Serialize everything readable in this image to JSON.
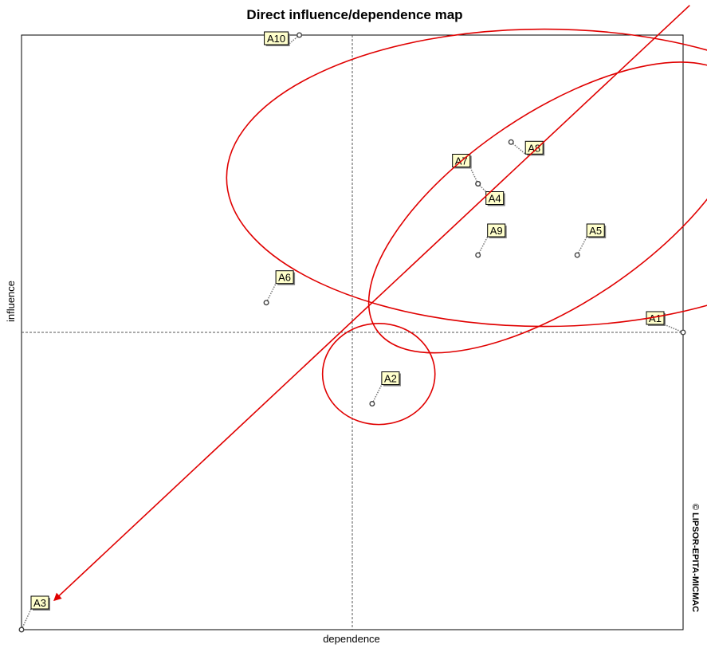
{
  "chart_data": {
    "type": "scatter",
    "title": "Direct influence/dependence map",
    "xlabel": "dependence",
    "ylabel": "influence",
    "copyright": "© LIPSOR-EPITA-MICMAC",
    "xlim": [
      0,
      1
    ],
    "ylim": [
      0,
      1
    ],
    "grid": false,
    "crosshair": {
      "x": 0.5,
      "y": 0.5
    },
    "points": [
      {
        "label": "A10",
        "x": 0.42,
        "y": 1.0
      },
      {
        "label": "A8",
        "x": 0.74,
        "y": 0.82
      },
      {
        "label": "A7",
        "x": 0.69,
        "y": 0.75
      },
      {
        "label": "A4",
        "x": 0.69,
        "y": 0.75
      },
      {
        "label": "A9",
        "x": 0.69,
        "y": 0.63
      },
      {
        "label": "A5",
        "x": 0.84,
        "y": 0.63
      },
      {
        "label": "A6",
        "x": 0.37,
        "y": 0.55
      },
      {
        "label": "A1",
        "x": 1.0,
        "y": 0.5
      },
      {
        "label": "A2",
        "x": 0.53,
        "y": 0.38
      },
      {
        "label": "A3",
        "x": 0.0,
        "y": 0.0
      }
    ],
    "annotations": {
      "color": "#e00000",
      "ellipses": [
        {
          "cx": 0.79,
          "cy": 0.76,
          "rx": 0.48,
          "ry": 0.25,
          "rotate": 0
        },
        {
          "cx": 0.81,
          "cy": 0.71,
          "rx": 0.33,
          "ry": 0.16,
          "rotate": -34
        },
        {
          "cx": 0.54,
          "cy": 0.43,
          "rx": 0.085,
          "ry": 0.085,
          "rotate": 0
        }
      ],
      "arrow": {
        "from": [
          1.01,
          1.05
        ],
        "to": [
          0.05,
          0.05
        ]
      }
    }
  }
}
